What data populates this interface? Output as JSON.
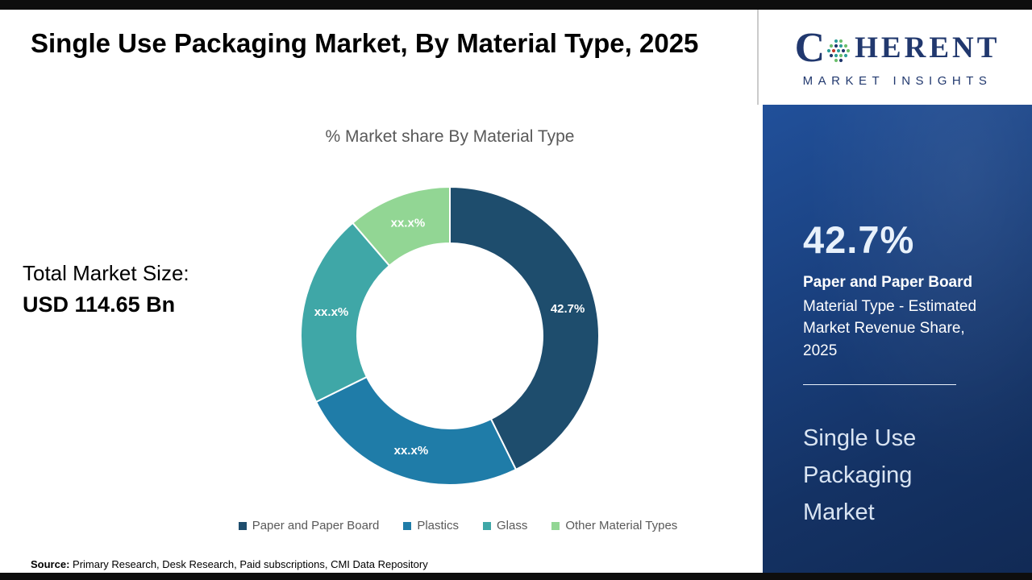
{
  "page": {
    "title": "Single Use Packaging Market, By Material Type, 2025",
    "source_label": "Source:",
    "source_text": " Primary Research, Desk Research, Paid subscriptions, CMI Data Repository"
  },
  "total_market": {
    "label": "Total Market Size:",
    "value": "USD 114.65 Bn"
  },
  "logo": {
    "brand_c": "C",
    "brand_rest": "HERENT",
    "subtitle": "MARKET INSIGHTS",
    "brand_color": "#21386e"
  },
  "sidebar": {
    "stat_value": "42.7%",
    "stat_bold": "Paper and Paper Board",
    "stat_desc": "Material Type - Estimated Market Revenue Share, 2025",
    "market_name": "Single Use Packaging Market",
    "background_color": "#173a6b"
  },
  "chart_data": {
    "type": "pie",
    "subtype": "donut",
    "title": "% Market share By Material Type",
    "legend_position": "bottom",
    "inner_radius_ratio": 0.62,
    "segments": [
      {
        "label": "Paper and Paper Board",
        "value": 42.7,
        "display": "42.7%",
        "color": "#1e4d6d"
      },
      {
        "label": "Plastics",
        "value": 25.0,
        "display": "xx.x%",
        "color": "#1f7ca8"
      },
      {
        "label": "Glass",
        "value": 21.0,
        "display": "xx.x%",
        "color": "#3fa7a7"
      },
      {
        "label": "Other Material Types",
        "value": 11.3,
        "display": "xx.x%",
        "color": "#92d694"
      }
    ]
  }
}
